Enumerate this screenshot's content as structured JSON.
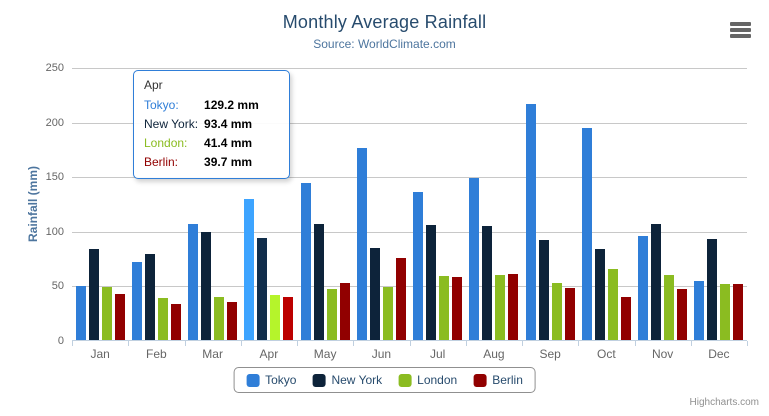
{
  "chart": {
    "title": "Monthly Average Rainfall",
    "subtitle": "Source: WorldClimate.com",
    "credits": "Highcharts.com"
  },
  "icons": {
    "context_menu": "hamburger-icon"
  },
  "colors": {
    "title": "#274b6d",
    "subtitle": "#4d759e",
    "axis_label": "#666666",
    "axis_line": "#c0d0e0",
    "gridline": "#c8c8c8",
    "legend_border": "#909090",
    "tooltip_border": "#2f7ed8",
    "credits": "#909090"
  },
  "chart_data": {
    "type": "bar",
    "title": "Monthly Average Rainfall",
    "xlabel": "",
    "ylabel": "Rainfall (mm)",
    "ylim": [
      0,
      250
    ],
    "ytick_interval": 50,
    "grid": true,
    "legend_position": "bottom",
    "categories": [
      "Jan",
      "Feb",
      "Mar",
      "Apr",
      "May",
      "Jun",
      "Jul",
      "Aug",
      "Sep",
      "Oct",
      "Nov",
      "Dec"
    ],
    "series": [
      {
        "name": "Tokyo",
        "color": "#2f7ed8",
        "values": [
          49.9,
          71.5,
          106.4,
          129.2,
          144.0,
          176.0,
          135.6,
          148.5,
          216.4,
          194.1,
          95.6,
          54.4
        ]
      },
      {
        "name": "New York",
        "color": "#0d233a",
        "values": [
          83.6,
          78.8,
          98.5,
          93.4,
          106.0,
          84.5,
          105.0,
          104.3,
          91.2,
          83.5,
          106.6,
          92.3
        ]
      },
      {
        "name": "London",
        "color": "#8bbc21",
        "values": [
          48.9,
          38.8,
          39.3,
          41.4,
          47.0,
          48.3,
          59.0,
          59.6,
          52.4,
          65.2,
          59.3,
          51.2
        ]
      },
      {
        "name": "Berlin",
        "color": "#910000",
        "values": [
          42.4,
          33.2,
          34.5,
          39.7,
          52.6,
          75.5,
          57.4,
          60.4,
          47.6,
          39.1,
          46.8,
          51.1
        ]
      }
    ]
  },
  "tooltip": {
    "category": "Apr",
    "hover_category_index": 3,
    "rows": [
      {
        "label": "Tokyo:",
        "value": "129.2",
        "suffix": "mm",
        "color": "#2f7ed8"
      },
      {
        "label": "New York:",
        "value": "93.4",
        "suffix": "mm",
        "color": "#0d233a"
      },
      {
        "label": "London:",
        "value": "41.4",
        "suffix": "mm",
        "color": "#8bbc21"
      },
      {
        "label": "Berlin:",
        "value": "39.7",
        "suffix": "mm",
        "color": "#910000"
      }
    ]
  }
}
